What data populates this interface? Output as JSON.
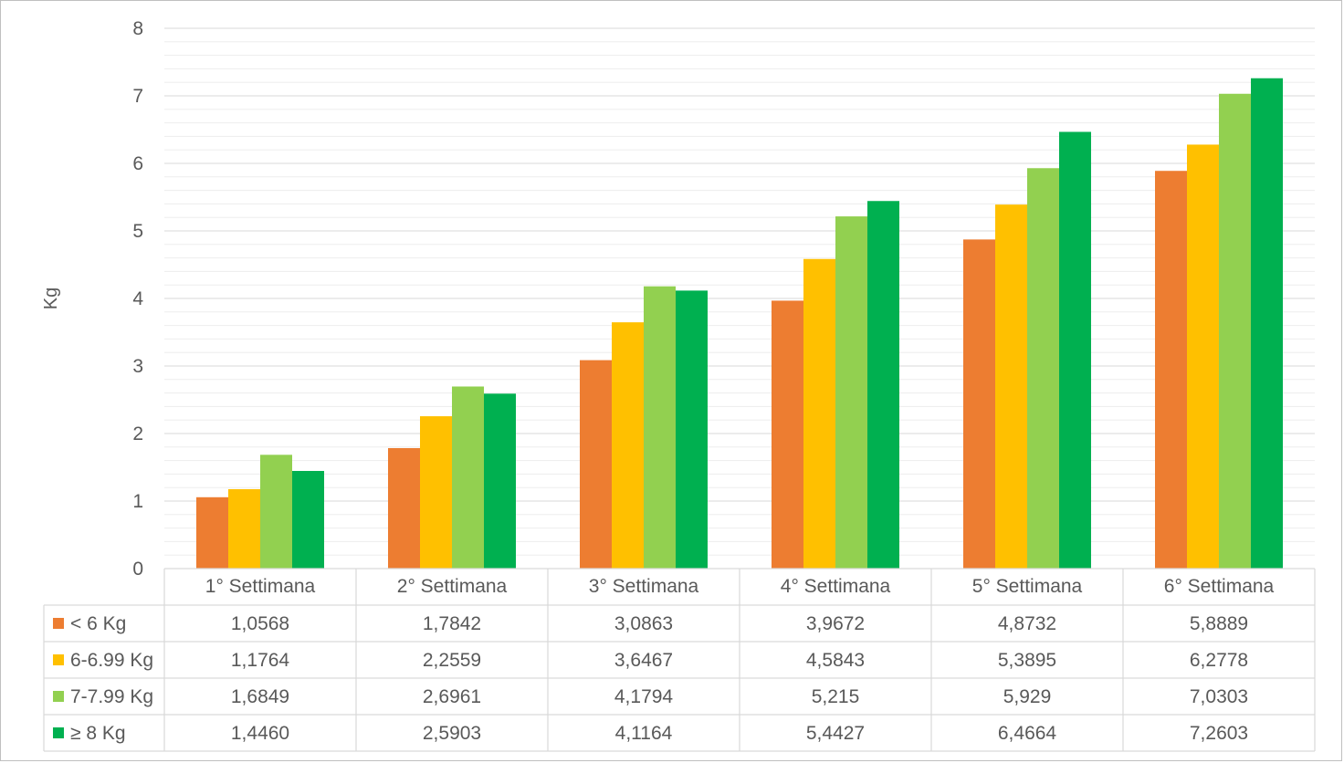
{
  "chart_data": {
    "type": "bar",
    "title": "",
    "xlabel": "",
    "ylabel": "Kg",
    "ylim": [
      0,
      8
    ],
    "yticks": [
      0,
      1,
      2,
      3,
      4,
      5,
      6,
      7,
      8
    ],
    "grid": true,
    "minor_grid": true,
    "legend": "data-table",
    "categories": [
      "1° Settimana",
      "2° Settimana",
      "3° Settimana",
      "4° Settimana",
      "5° Settimana",
      "6° Settimana"
    ],
    "series": [
      {
        "name": "< 6 Kg",
        "color": "#ed7d31",
        "values": [
          1.0568,
          1.7842,
          3.0863,
          3.9672,
          4.8732,
          5.8889
        ],
        "labels": [
          "1,0568",
          "1,7842",
          "3,0863",
          "3,9672",
          "4,8732",
          "5,8889"
        ]
      },
      {
        "name": "6-6.99 Kg",
        "color": "#ffc000",
        "values": [
          1.1764,
          2.2559,
          3.6467,
          4.5843,
          5.3895,
          6.2778
        ],
        "labels": [
          "1,1764",
          "2,2559",
          "3,6467",
          "4,5843",
          "5,3895",
          "6,2778"
        ]
      },
      {
        "name": "7-7.99 Kg",
        "color": "#92d050",
        "values": [
          1.6849,
          2.6961,
          4.1794,
          5.215,
          5.929,
          7.0303
        ],
        "labels": [
          "1,6849",
          "2,6961",
          "4,1794",
          "5,215",
          "5,929",
          "7,0303"
        ]
      },
      {
        "name": "≥ 8 Kg",
        "color": "#00b050",
        "values": [
          1.446,
          2.5903,
          4.1164,
          5.4427,
          6.4664,
          7.2603
        ],
        "labels": [
          "1,4460",
          "2,5903",
          "4,1164",
          "5,4427",
          "6,4664",
          "7,2603"
        ]
      }
    ]
  }
}
